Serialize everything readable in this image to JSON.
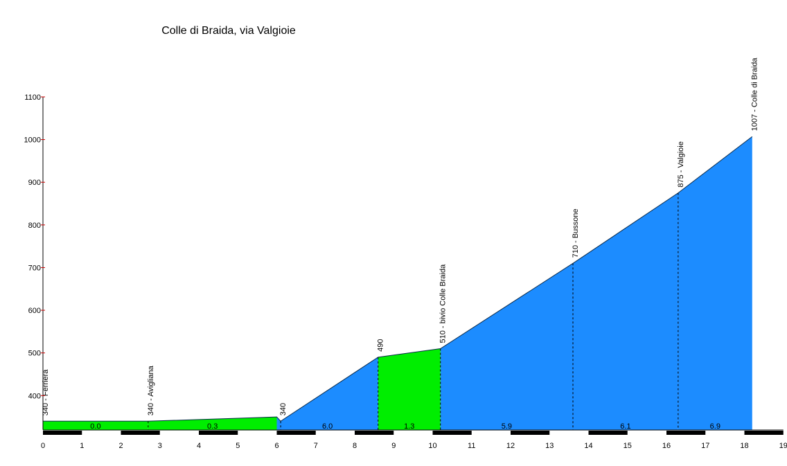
{
  "chart_data": {
    "type": "area",
    "title": "Colle di Braida, via Valgioie",
    "xlabel": "",
    "ylabel": "",
    "xlim": [
      0,
      19
    ],
    "ylim": [
      320,
      1100
    ],
    "x_ticks": [
      "0",
      "1",
      "2",
      "3",
      "4",
      "5",
      "6",
      "7",
      "8",
      "9",
      "10",
      "11",
      "12",
      "13",
      "14",
      "15",
      "16",
      "17",
      "18",
      "19"
    ],
    "y_ticks": [
      "400",
      "500",
      "600",
      "700",
      "800",
      "900",
      "1000",
      "1100"
    ],
    "profile": [
      {
        "x": 0.0,
        "y": 340
      },
      {
        "x": 2.7,
        "y": 340
      },
      {
        "x": 6.0,
        "y": 350
      },
      {
        "x": 6.1,
        "y": 340
      },
      {
        "x": 8.6,
        "y": 490
      },
      {
        "x": 10.2,
        "y": 510
      },
      {
        "x": 13.6,
        "y": 710
      },
      {
        "x": 16.3,
        "y": 875
      },
      {
        "x": 18.2,
        "y": 1007
      }
    ],
    "segments": [
      {
        "from": 0.0,
        "to": 2.7,
        "gradient": "0.0",
        "color": "#00ee00"
      },
      {
        "from": 2.7,
        "to": 6.0,
        "gradient": "0.3",
        "color": "#00ee00"
      },
      {
        "from": 6.0,
        "to": 8.6,
        "gradient": "6.0",
        "color": "#1c8cff"
      },
      {
        "from": 8.6,
        "to": 10.2,
        "gradient": "1.3",
        "color": "#00ee00"
      },
      {
        "from": 10.2,
        "to": 13.6,
        "gradient": "5.9",
        "color": "#1c8cff"
      },
      {
        "from": 13.6,
        "to": 16.3,
        "gradient": "6.1",
        "color": "#1c8cff"
      },
      {
        "from": 16.3,
        "to": 18.2,
        "gradient": "6.9",
        "color": "#1c8cff"
      }
    ],
    "waypoints": [
      {
        "x": 0.0,
        "y": 340,
        "label": "340 - Ferriera"
      },
      {
        "x": 2.7,
        "y": 340,
        "label": "340 - Avigliana"
      },
      {
        "x": 6.1,
        "y": 340,
        "label": "340"
      },
      {
        "x": 8.6,
        "y": 490,
        "label": "490"
      },
      {
        "x": 10.2,
        "y": 510,
        "label": "510 - bivio Colle Braida"
      },
      {
        "x": 13.6,
        "y": 710,
        "label": "710 - Bussone"
      },
      {
        "x": 16.3,
        "y": 875,
        "label": "875 - Valgioie"
      },
      {
        "x": 18.2,
        "y": 1007,
        "label": "1007 - Colle di Braida"
      }
    ],
    "grid": false,
    "legend": "none"
  }
}
